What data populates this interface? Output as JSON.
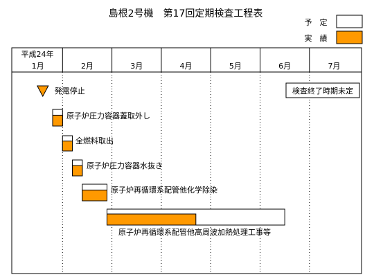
{
  "title": "島根2号機　第17回定期検査工程表",
  "legend": {
    "planned_label": "予　定",
    "actual_label": "実　績",
    "planned_color": "#ffffff",
    "actual_color": "#ff9900"
  },
  "header": {
    "year_label": "平成24年",
    "months": [
      "1月",
      "2月",
      "3月",
      "4月",
      "5月",
      "6月",
      "7月"
    ]
  },
  "note": "検査終了時期未定",
  "chart_data": {
    "type": "gantt",
    "title": "島根2号機　第17回定期検査工程表",
    "x_axis": {
      "year": "平成24年",
      "months": [
        "1月",
        "2月",
        "3月",
        "4月",
        "5月",
        "6月",
        "7月"
      ],
      "range_months": [
        1,
        7
      ]
    },
    "milestone": {
      "label": "発電停止",
      "month": 1.6
    },
    "tasks": [
      {
        "label": "原子炉圧力容器蓋取外し",
        "planned": [
          1.8,
          2.0
        ],
        "actual": [
          1.8,
          2.0
        ]
      },
      {
        "label": "全燃料取出",
        "planned": [
          2.0,
          2.2
        ],
        "actual": [
          2.0,
          2.2
        ]
      },
      {
        "label": "原子炉圧力容器水抜き",
        "planned": [
          2.2,
          2.4
        ],
        "actual": [
          2.2,
          2.4
        ]
      },
      {
        "label": "原子炉再循環系配管他化学除染",
        "planned": [
          2.4,
          2.9
        ],
        "actual": [
          2.4,
          2.9
        ]
      },
      {
        "label": "原子炉再循環系配管他高周波加熱処理工事等",
        "planned": [
          2.9,
          6.5
        ],
        "actual": [
          2.9,
          4.7
        ]
      }
    ]
  }
}
